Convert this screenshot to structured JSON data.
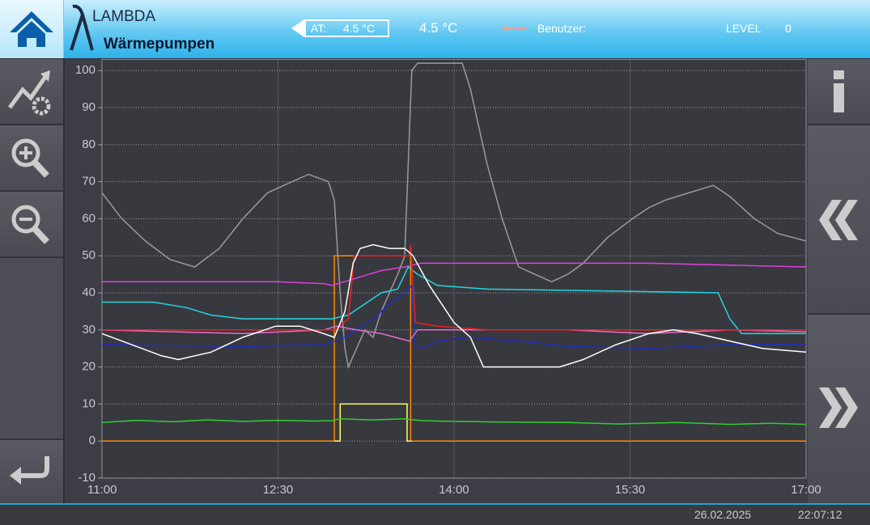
{
  "header": {
    "logo_top": "LAMBDA",
    "logo_bottom": "Wärmepumpen",
    "at_label": "AT:",
    "at_value": "4.5 °C",
    "temperature": "4.5 °C",
    "user_label": "Benutzer:",
    "level_label": "LEVEL",
    "level_value": "0"
  },
  "footer": {
    "date": "26.02.2025",
    "time": "22:07:12"
  },
  "chart_data": {
    "type": "line",
    "xlim": [
      11,
      17
    ],
    "ylim": [
      -10,
      103
    ],
    "xticks": [
      {
        "value": 11,
        "label": "11:00"
      },
      {
        "value": 12.5,
        "label": "12:30"
      },
      {
        "value": 14,
        "label": "14:00"
      },
      {
        "value": 15.5,
        "label": "15:30"
      },
      {
        "value": 17,
        "label": "17:00"
      }
    ],
    "yticks": [
      -10,
      0,
      10,
      20,
      30,
      40,
      50,
      60,
      70,
      80,
      90,
      100
    ],
    "grid": true,
    "series": [
      {
        "color": "#9a9a9e",
        "x": [
          11.0,
          11.17,
          11.37,
          11.58,
          11.79,
          12.0,
          12.2,
          12.41,
          12.62,
          12.76,
          12.93,
          12.98,
          13.03,
          13.07,
          13.1,
          13.17,
          13.24,
          13.31,
          13.38,
          13.52,
          13.58,
          13.64,
          13.69,
          14.07,
          14.14,
          14.28,
          14.41,
          14.55,
          14.69,
          14.83,
          14.97,
          15.1,
          15.31,
          15.52,
          15.66,
          15.8,
          16.0,
          16.21,
          16.35,
          16.56,
          16.76,
          17.0
        ],
        "values": [
          67,
          60,
          54,
          49,
          47,
          52,
          60,
          67,
          70,
          72,
          70,
          65,
          40,
          25,
          20,
          25,
          30,
          28,
          35,
          45,
          50,
          100,
          102,
          102,
          95,
          75,
          60,
          47,
          45,
          43,
          45,
          48,
          55,
          60,
          63,
          65,
          67,
          69,
          66,
          60,
          56,
          54
        ]
      },
      {
        "color": "#ff8c00",
        "x": [
          11,
          12.98,
          12.98,
          13.63,
          13.63,
          17
        ],
        "values": [
          0,
          0,
          50,
          50,
          0,
          0
        ]
      },
      {
        "color": "#ffff66",
        "x": [
          12.98,
          13.03,
          13.03,
          13.6,
          13.6,
          13.64
        ],
        "values": [
          0,
          0,
          10,
          10,
          0,
          0
        ]
      },
      {
        "color": "#e040e0",
        "x": [
          11.0,
          12.48,
          12.89,
          12.96,
          13.17,
          13.38,
          13.58,
          13.72,
          15.66,
          17.0
        ],
        "values": [
          43,
          43,
          42.5,
          42,
          44,
          46,
          47,
          48,
          48,
          47
        ]
      },
      {
        "color": "#20d8e0",
        "x": [
          11.0,
          11.44,
          11.72,
          11.93,
          12.2,
          12.96,
          13.1,
          13.24,
          13.38,
          13.52,
          13.61,
          13.69,
          13.86,
          14.28,
          15.31,
          16.25,
          16.35,
          16.45,
          17.0
        ],
        "values": [
          37.5,
          37.5,
          36,
          34,
          33,
          33,
          34,
          37,
          40,
          41,
          47,
          45,
          42,
          41,
          40.5,
          40,
          33,
          29,
          29
        ]
      },
      {
        "color": "#2030c0",
        "x": [
          11.0,
          12.2,
          12.89,
          12.98,
          13.07,
          13.17,
          13.31,
          13.45,
          13.58,
          13.64,
          13.67,
          13.72,
          13.86,
          14.14,
          14.55,
          14.97,
          15.66,
          16.35,
          17.0
        ],
        "values": [
          26,
          25.5,
          26,
          27,
          28,
          30,
          33,
          37,
          40,
          42,
          26,
          25,
          27,
          28,
          27,
          25.5,
          25,
          26,
          26
        ]
      },
      {
        "color": "#e070d0",
        "x": [
          11.0,
          12.2,
          12.89,
          13.0,
          13.17,
          13.38,
          13.62,
          13.69,
          14.28,
          14.97,
          15.66,
          16.35,
          17.0
        ],
        "values": [
          30,
          29,
          30,
          31,
          30,
          29,
          27,
          30,
          30,
          30,
          29,
          30,
          29.5
        ]
      },
      {
        "color": "#ee2020",
        "x": [
          11.0,
          12.98,
          13.1,
          13.15,
          13.62,
          13.63,
          13.67,
          13.86,
          14.28,
          17.0
        ],
        "values": [
          30,
          30,
          33,
          50,
          50,
          53,
          32,
          31,
          30,
          30
        ]
      },
      {
        "color": "#ffffff",
        "x": [
          11.0,
          11.17,
          11.51,
          11.65,
          11.93,
          12.2,
          12.48,
          12.69,
          12.89,
          12.98,
          13.07,
          13.14,
          13.2,
          13.31,
          13.45,
          13.58,
          13.65,
          13.79,
          14.0,
          14.14,
          14.25,
          14.9,
          15.1,
          15.38,
          15.66,
          15.87,
          16.07,
          16.35,
          16.63,
          17.0
        ],
        "values": [
          29,
          27,
          23,
          22,
          24,
          28,
          31,
          31,
          29,
          28,
          35,
          48,
          52,
          53,
          52,
          52,
          50,
          42,
          32,
          28,
          20,
          20,
          22,
          26,
          29,
          30,
          29,
          27,
          25,
          24
        ]
      },
      {
        "color": "#30d030",
        "x": [
          11.0,
          11.3,
          11.6,
          11.9,
          12.2,
          12.5,
          12.8,
          12.96,
          13.03,
          13.3,
          13.58,
          13.72,
          14.0,
          14.4,
          14.97,
          15.4,
          15.9,
          16.35,
          16.7,
          17.0
        ],
        "values": [
          5,
          5.6,
          5.2,
          5.7,
          5.3,
          5.6,
          5.4,
          5.5,
          6,
          5.7,
          6,
          5.5,
          5.3,
          5.1,
          5,
          4.6,
          5,
          4.5,
          4.8,
          4.5
        ]
      }
    ]
  }
}
